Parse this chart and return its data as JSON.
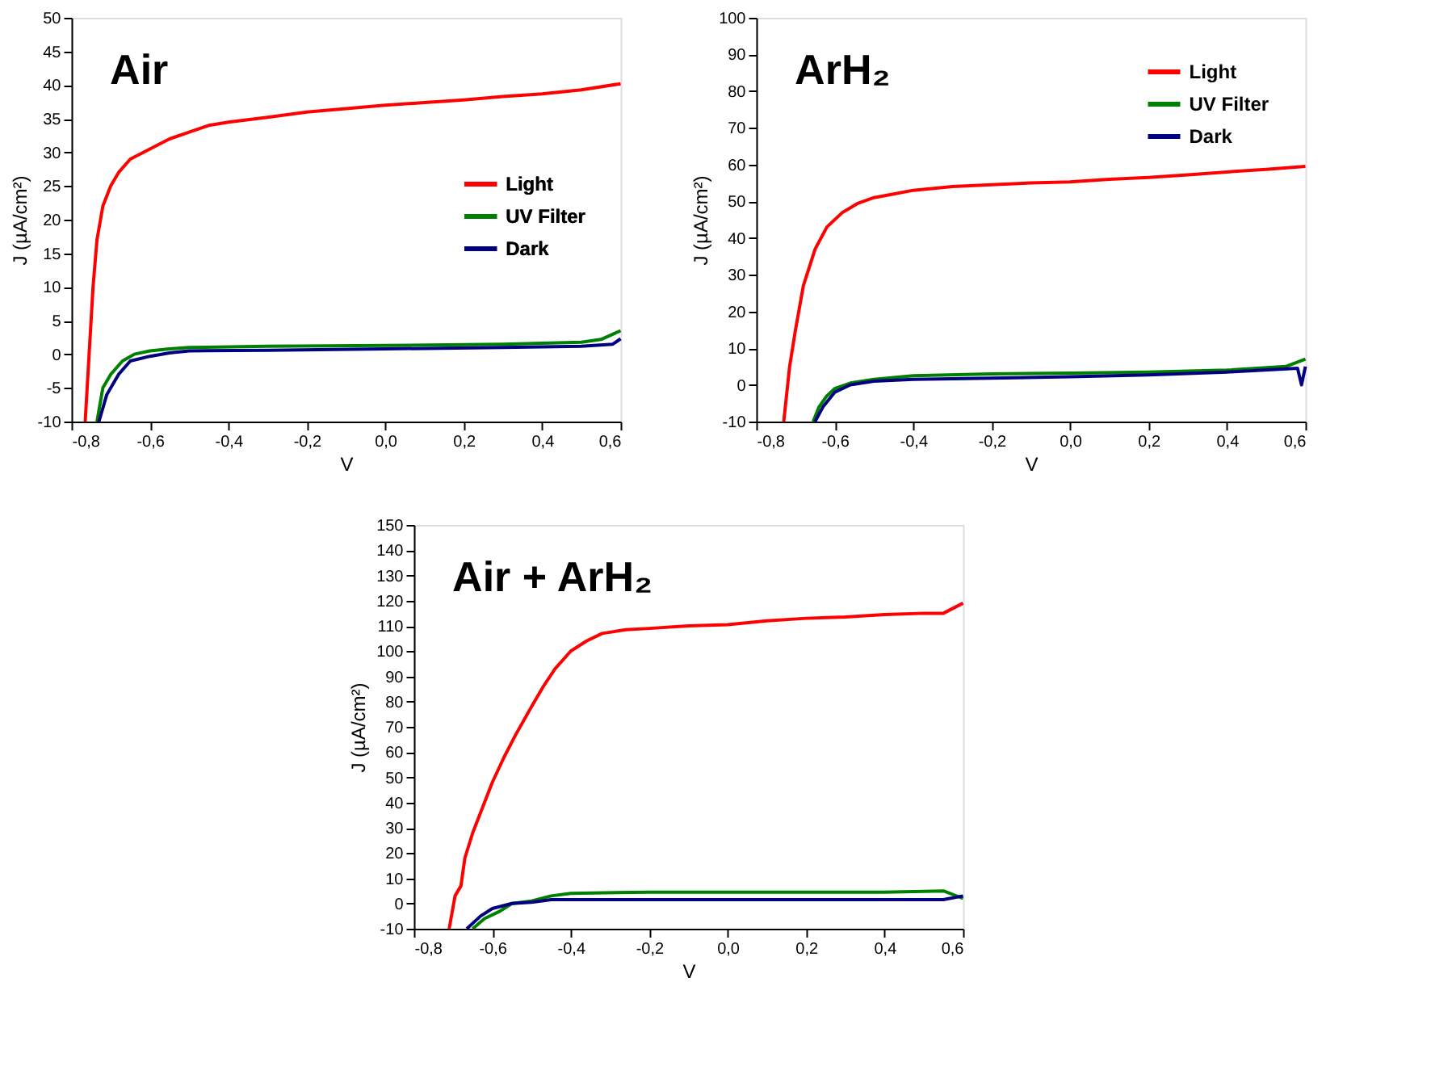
{
  "chart_data": [
    {
      "type": "line",
      "title": "Air",
      "xlabel": "V",
      "ylabel": "J (µA/cm²)",
      "legend": "right",
      "grid": false,
      "marker": "none",
      "line_style": "solid",
      "xlim": [
        -0.8,
        0.6
      ],
      "xticks": [
        {
          "value": -0.8,
          "label": "-0,8"
        },
        {
          "value": -0.6,
          "label": "-0,6"
        },
        {
          "value": -0.4,
          "label": "-0,4"
        },
        {
          "value": -0.2,
          "label": "-0,2"
        },
        {
          "value": 0.0,
          "label": "0,0"
        },
        {
          "value": 0.2,
          "label": "0,2"
        },
        {
          "value": 0.4,
          "label": "0,4"
        },
        {
          "value": 0.6,
          "label": "0,6"
        }
      ],
      "ylim": [
        -10,
        50
      ],
      "yticks": [
        -10,
        -5,
        0,
        5,
        10,
        15,
        20,
        25,
        30,
        35,
        40,
        45,
        50
      ],
      "series": [
        {
          "name": "Light",
          "color": "#ff0000",
          "x": [
            -0.765,
            -0.755,
            -0.745,
            -0.735,
            -0.72,
            -0.7,
            -0.68,
            -0.65,
            -0.6,
            -0.55,
            -0.5,
            -0.45,
            -0.4,
            -0.3,
            -0.2,
            -0.1,
            0.0,
            0.1,
            0.2,
            0.3,
            0.4,
            0.5,
            0.6
          ],
          "values": [
            -10,
            0,
            10,
            17,
            22,
            25,
            27,
            29,
            30.5,
            32,
            33,
            34,
            34.5,
            35.2,
            36,
            36.5,
            37,
            37.4,
            37.8,
            38.3,
            38.7,
            39.3,
            40.2
          ]
        },
        {
          "name": "UV Filter",
          "color": "#008000",
          "x": [
            -0.735,
            -0.72,
            -0.7,
            -0.67,
            -0.64,
            -0.6,
            -0.55,
            -0.5,
            -0.3,
            0.0,
            0.3,
            0.5,
            0.55,
            0.6
          ],
          "values": [
            -10,
            -5,
            -3,
            -1,
            0,
            0.5,
            0.8,
            1,
            1.2,
            1.3,
            1.5,
            1.8,
            2.2,
            3.5
          ]
        },
        {
          "name": "Dark",
          "color": "#000080",
          "x": [
            -0.73,
            -0.71,
            -0.68,
            -0.65,
            -0.6,
            -0.55,
            -0.5,
            -0.3,
            0.0,
            0.3,
            0.5,
            0.58,
            0.6
          ],
          "values": [
            -10,
            -6,
            -3,
            -1,
            -0.3,
            0.2,
            0.5,
            0.6,
            0.8,
            1.0,
            1.2,
            1.5,
            2.3
          ]
        }
      ]
    },
    {
      "type": "line",
      "title": "ArH₂",
      "xlabel": "V",
      "ylabel": "J (µA/cm²)",
      "legend": "top right",
      "grid": false,
      "marker": "none",
      "line_style": "solid",
      "xlim": [
        -0.8,
        0.6
      ],
      "xticks": [
        {
          "value": -0.8,
          "label": "-0,8"
        },
        {
          "value": -0.6,
          "label": "-0,6"
        },
        {
          "value": -0.4,
          "label": "-0,4"
        },
        {
          "value": -0.2,
          "label": "-0,2"
        },
        {
          "value": 0.0,
          "label": "0,0"
        },
        {
          "value": 0.2,
          "label": "0,2"
        },
        {
          "value": 0.4,
          "label": "0,4"
        },
        {
          "value": 0.6,
          "label": "0,6"
        }
      ],
      "ylim": [
        -10,
        100
      ],
      "yticks": [
        -10,
        0,
        10,
        20,
        30,
        40,
        50,
        60,
        70,
        80,
        90,
        100
      ],
      "series": [
        {
          "name": "Light",
          "color": "#ff0000",
          "x": [
            -0.73,
            -0.715,
            -0.7,
            -0.68,
            -0.65,
            -0.62,
            -0.58,
            -0.54,
            -0.5,
            -0.45,
            -0.4,
            -0.3,
            -0.2,
            -0.1,
            0.0,
            0.1,
            0.2,
            0.3,
            0.4,
            0.5,
            0.6
          ],
          "values": [
            -10,
            5,
            15,
            27,
            37,
            43,
            47,
            49.5,
            51,
            52,
            53,
            54,
            54.5,
            55,
            55.3,
            56,
            56.5,
            57.2,
            58,
            58.7,
            59.5
          ]
        },
        {
          "name": "UV Filter",
          "color": "#008000",
          "x": [
            -0.655,
            -0.64,
            -0.62,
            -0.6,
            -0.56,
            -0.5,
            -0.4,
            -0.2,
            0.0,
            0.2,
            0.4,
            0.55,
            0.6
          ],
          "values": [
            -10,
            -6,
            -3,
            -1,
            0.5,
            1.5,
            2.5,
            3,
            3.2,
            3.5,
            4,
            5,
            7
          ]
        },
        {
          "name": "Dark",
          "color": "#000080",
          "x": [
            -0.65,
            -0.63,
            -0.6,
            -0.56,
            -0.5,
            -0.4,
            -0.2,
            0.0,
            0.2,
            0.4,
            0.58,
            0.59,
            0.6
          ],
          "values": [
            -10,
            -6,
            -2,
            0,
            1,
            1.5,
            1.8,
            2.2,
            2.7,
            3.5,
            4.5,
            0,
            5
          ]
        }
      ]
    },
    {
      "type": "line",
      "title": "Air + ArH₂",
      "xlabel": "V",
      "ylabel": "J (µA/cm²)",
      "legend": "right",
      "grid": false,
      "marker": "none",
      "line_style": "solid",
      "xlim": [
        -0.8,
        0.6
      ],
      "xticks": [
        {
          "value": -0.8,
          "label": "-0,8"
        },
        {
          "value": -0.6,
          "label": "-0,6"
        },
        {
          "value": -0.4,
          "label": "-0,4"
        },
        {
          "value": -0.2,
          "label": "-0,2"
        },
        {
          "value": 0.0,
          "label": "0,0"
        },
        {
          "value": 0.2,
          "label": "0,2"
        },
        {
          "value": 0.4,
          "label": "0,4"
        },
        {
          "value": 0.6,
          "label": "0,6"
        }
      ],
      "ylim": [
        -10,
        150
      ],
      "yticks": [
        -10,
        0,
        10,
        20,
        30,
        40,
        50,
        60,
        70,
        80,
        90,
        100,
        110,
        120,
        130,
        140,
        150
      ],
      "series": [
        {
          "name": "Light",
          "color": "#ff0000",
          "x": [
            -0.71,
            -0.695,
            -0.68,
            -0.67,
            -0.65,
            -0.62,
            -0.6,
            -0.57,
            -0.54,
            -0.5,
            -0.47,
            -0.44,
            -0.4,
            -0.36,
            -0.32,
            -0.26,
            -0.2,
            -0.1,
            0.0,
            0.1,
            0.2,
            0.3,
            0.4,
            0.5,
            0.55,
            0.6
          ],
          "values": [
            -10,
            3,
            7,
            18,
            28,
            40,
            48,
            58,
            67,
            78,
            86,
            93,
            100,
            104,
            107,
            108.5,
            109,
            110,
            110.5,
            112,
            113,
            113.5,
            114.5,
            115,
            115,
            119
          ]
        },
        {
          "name": "UV Filter",
          "color": "#008000",
          "x": [
            -0.65,
            -0.62,
            -0.58,
            -0.55,
            -0.5,
            -0.45,
            -0.4,
            -0.2,
            0.0,
            0.2,
            0.4,
            0.55,
            0.6
          ],
          "values": [
            -10,
            -6,
            -3,
            0,
            1,
            3,
            4,
            4.5,
            4.5,
            4.5,
            4.5,
            5,
            2
          ]
        },
        {
          "name": "Dark",
          "color": "#000080",
          "x": [
            -0.665,
            -0.63,
            -0.6,
            -0.55,
            -0.5,
            -0.45,
            -0.4,
            0.0,
            0.55,
            0.6
          ],
          "values": [
            -10,
            -5,
            -2,
            0,
            0.5,
            1.5,
            1.5,
            1.5,
            1.5,
            3
          ]
        }
      ]
    }
  ]
}
